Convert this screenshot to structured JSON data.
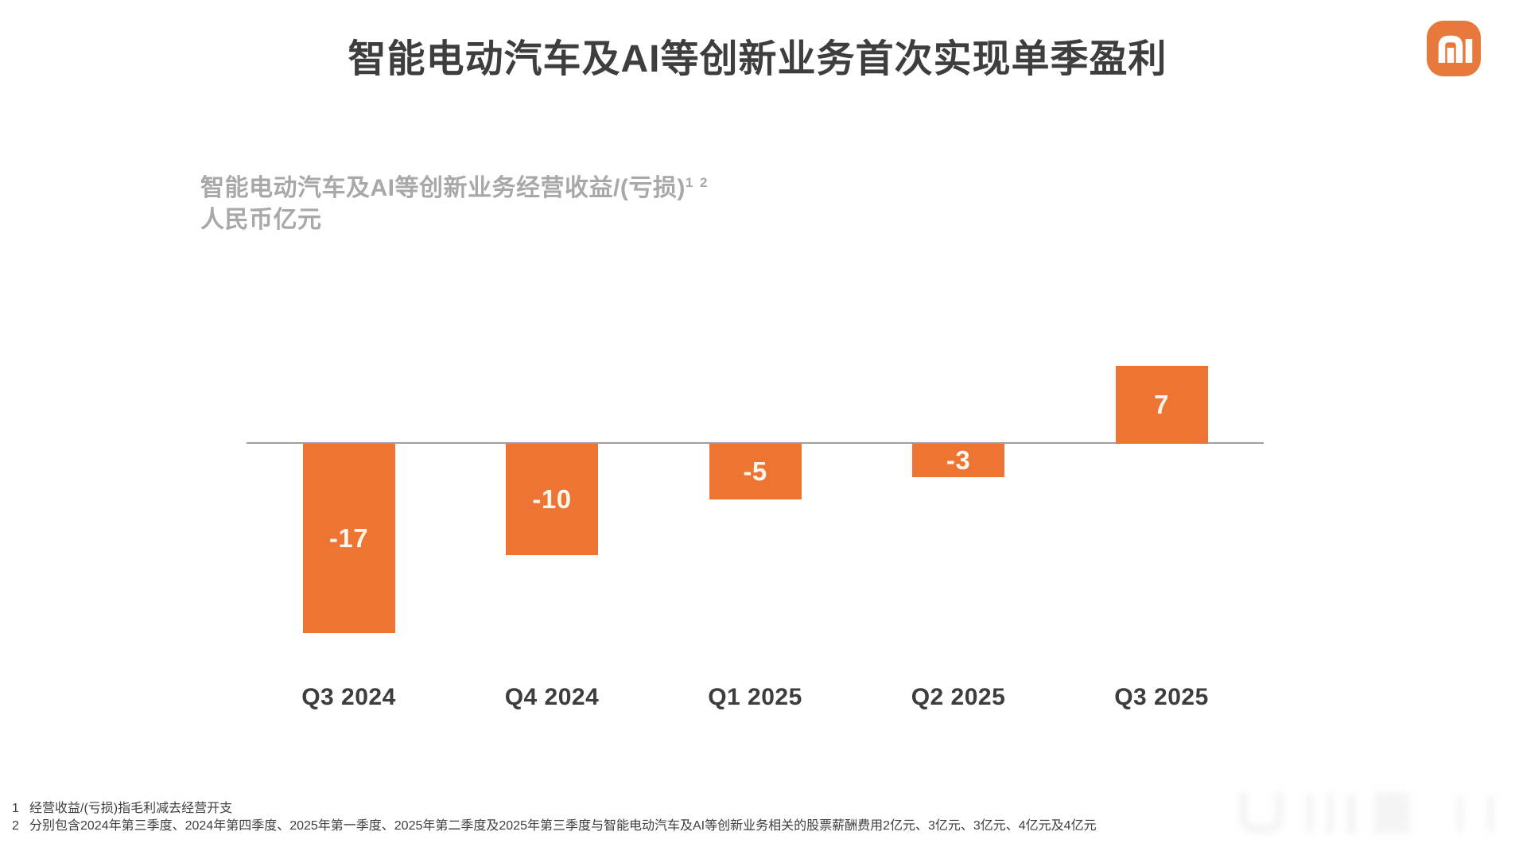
{
  "header": {
    "title": "智能电动汽车及AI等创新业务首次实现单季盈利"
  },
  "logo": {
    "name": "Xiaomi mi logo",
    "background_color": "#e8793c",
    "glyph_color": "#ffffff"
  },
  "chart_data": {
    "type": "bar",
    "title": "智能电动汽车及AI等创新业务经营收益/(亏损)",
    "title_superscript": "1 2",
    "unit_label": "人民币亿元",
    "categories": [
      "Q3 2024",
      "Q4 2024",
      "Q1 2025",
      "Q2 2025",
      "Q3 2025"
    ],
    "values": [
      -17,
      -10,
      -5,
      -3,
      7
    ],
    "value_labels": [
      "-17",
      "-10",
      "-5",
      "-3",
      "7"
    ],
    "bar_color": "#ed7432",
    "bar_label_color": "#fcf6ec",
    "axis_color": "#9e9e9e",
    "category_label_color": "#3d3d3d",
    "baseline": 0,
    "ylim": [
      -18,
      8
    ],
    "grid": false,
    "legend": false,
    "value_label_position": "inside-bar-center"
  },
  "footnotes": [
    {
      "marker": "1",
      "text": "经营收益/(亏损)指毛利减去经营开支"
    },
    {
      "marker": "2",
      "text": "分别包含2024年第三季度、2024年第四季度、2025年第一季度、2025年第二季度及2025年第三季度与智能电动汽车及AI等创新业务相关的股票薪酬费用2亿元、3亿元、3亿元、4亿元及4亿元"
    }
  ]
}
